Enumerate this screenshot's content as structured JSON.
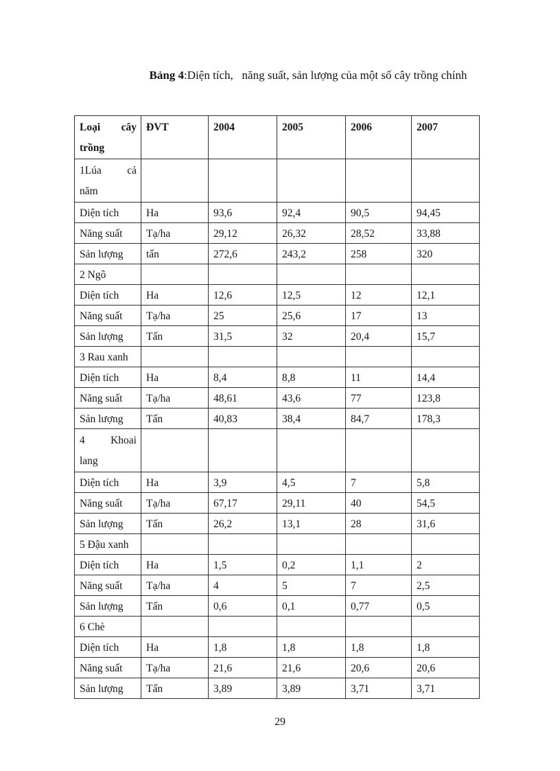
{
  "title": {
    "bold": "Bảng 4",
    "rest": ":Diện tích,   năng suất, sản lượng của một số cây trồng chính"
  },
  "page": {
    "number": "29"
  },
  "table": {
    "header": {
      "col1": {
        "l1a": "Loại",
        "l1b": "cây",
        "l2": "trồng"
      },
      "unit_label": "ĐVT",
      "years": [
        "2004",
        "2005",
        "2006",
        "2007"
      ]
    },
    "sections": [
      {
        "title": {
          "l1a": "1Lúa",
          "l1b": "cả",
          "l2": "năm"
        },
        "rows": [
          {
            "label": "Diện tích",
            "unit": "Ha",
            "values": [
              "93,6",
              "92,4",
              "90,5",
              "94,45"
            ]
          },
          {
            "label": "Năng suất",
            "unit": "Tạ/ha",
            "values": [
              "29,12",
              "26,32",
              "28,52",
              "33,88"
            ]
          },
          {
            "label": "Sản lượng",
            "unit": "tấn",
            "values": [
              "272,6",
              "243,2",
              "258",
              "320"
            ]
          }
        ]
      },
      {
        "title": {
          "l1a": "2 Ngô"
        },
        "rows": [
          {
            "label": "Diện tích",
            "unit": "Ha",
            "values": [
              "12,6",
              "12,5",
              "12",
              "12,1"
            ]
          },
          {
            "label": "Năng suất",
            "unit": "Tạ/ha",
            "values": [
              "25",
              "25,6",
              "17",
              "13"
            ]
          },
          {
            "label": "Sản lượng",
            "unit": "Tấn",
            "values": [
              "31,5",
              "32",
              "20,4",
              "15,7"
            ]
          }
        ]
      },
      {
        "title": {
          "l1a": "3 Rau xanh"
        },
        "rows": [
          {
            "label": "Diện tích",
            "unit": "Ha",
            "values": [
              "8,4",
              "8,8",
              "11",
              "14,4"
            ]
          },
          {
            "label": "Năng suất",
            "unit": "Tạ/ha",
            "values": [
              "48,61",
              "43,6",
              "77",
              "123,8"
            ]
          },
          {
            "label": "Sản lượng",
            "unit": "Tấn",
            "values": [
              "40,83",
              "38,4",
              "84,7",
              "178,3"
            ]
          }
        ]
      },
      {
        "title": {
          "l1a": "4",
          "l1b": "Khoai",
          "l2": "lang"
        },
        "rows": [
          {
            "label": "Diện tích",
            "unit": "Ha",
            "values": [
              "3,9",
              "4,5",
              "7",
              "5,8"
            ]
          },
          {
            "label": "Năng suất",
            "unit": "Tạ/ha",
            "values": [
              "67,17",
              "29,11",
              "40",
              "54,5"
            ]
          },
          {
            "label": "Sản lượng",
            "unit": "Tấn",
            "values": [
              "26,2",
              "13,1",
              "28",
              "31,6"
            ]
          }
        ]
      },
      {
        "title": {
          "l1a": "5 Đậu xanh"
        },
        "rows": [
          {
            "label": "Diện tích",
            "unit": "Ha",
            "values": [
              "1,5",
              "0,2",
              "1,1",
              "2"
            ]
          },
          {
            "label": "Năng suất",
            "unit": "Tạ/ha",
            "values": [
              "4",
              "5",
              "7",
              "2,5"
            ]
          },
          {
            "label": "Sản lượng",
            "unit": "Tấn",
            "values": [
              "0,6",
              "0,1",
              "0,77",
              "0,5"
            ]
          }
        ]
      },
      {
        "title": {
          "l1a": "6 Chè"
        },
        "rows": [
          {
            "label": "Diện tích",
            "unit": "Ha",
            "values": [
              "1,8",
              "1,8",
              "1,8",
              "1,8"
            ]
          },
          {
            "label": "Năng suất",
            "unit": "Tạ/ha",
            "values": [
              "21,6",
              "21,6",
              "20,6",
              "20,6"
            ]
          },
          {
            "label": "Sản lượng",
            "unit": "Tấn",
            "values": [
              "3,89",
              "3,89",
              "3,71",
              "3,71"
            ]
          }
        ]
      }
    ]
  }
}
